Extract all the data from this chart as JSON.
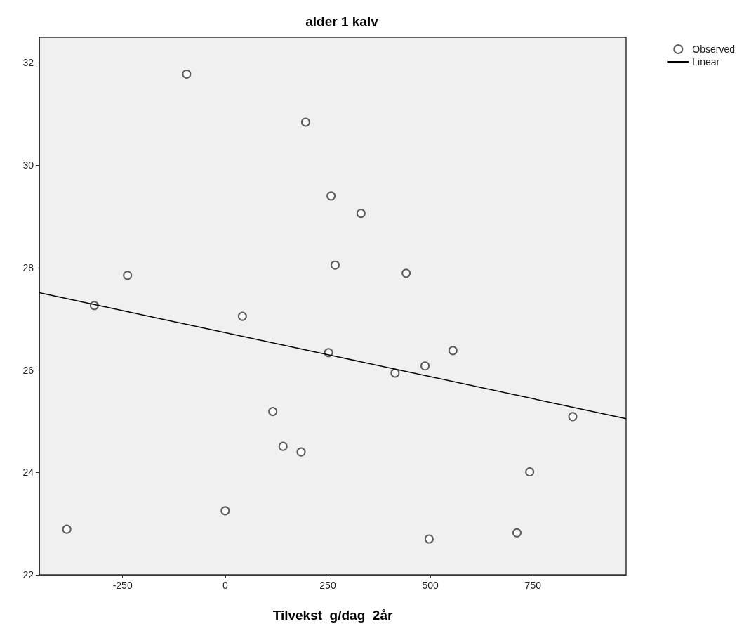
{
  "chart_data": {
    "type": "scatter",
    "title": "alder 1 kalv",
    "xlabel": "Tilvekst_g/dag_2år",
    "xlim": [
      -453,
      977
    ],
    "xticks": [
      -250,
      0,
      250,
      500,
      750
    ],
    "ylim": [
      22,
      32.5
    ],
    "yticks": [
      22,
      24,
      26,
      28,
      30,
      32
    ],
    "grid": false,
    "legend": "top right",
    "marker": "circle",
    "series": [
      {
        "name": "Observed",
        "color": "#333333",
        "x": [
          -386,
          -319,
          -238,
          -94,
          0,
          42,
          116,
          141,
          185,
          196,
          252,
          258,
          268,
          331,
          414,
          441,
          487,
          497,
          555,
          711,
          742,
          847
        ],
        "values": [
          22.89,
          27.26,
          27.85,
          31.78,
          23.25,
          27.05,
          25.19,
          24.51,
          24.4,
          30.84,
          26.34,
          29.4,
          28.05,
          29.06,
          25.94,
          27.89,
          26.08,
          22.7,
          26.38,
          22.82,
          24.01,
          25.09
        ]
      },
      {
        "name": "Linear",
        "type": "line",
        "color": "#000000",
        "marker": "none",
        "line_style": "solid",
        "x": [
          -453,
          977
        ],
        "values": [
          27.51,
          25.05
        ]
      }
    ]
  }
}
